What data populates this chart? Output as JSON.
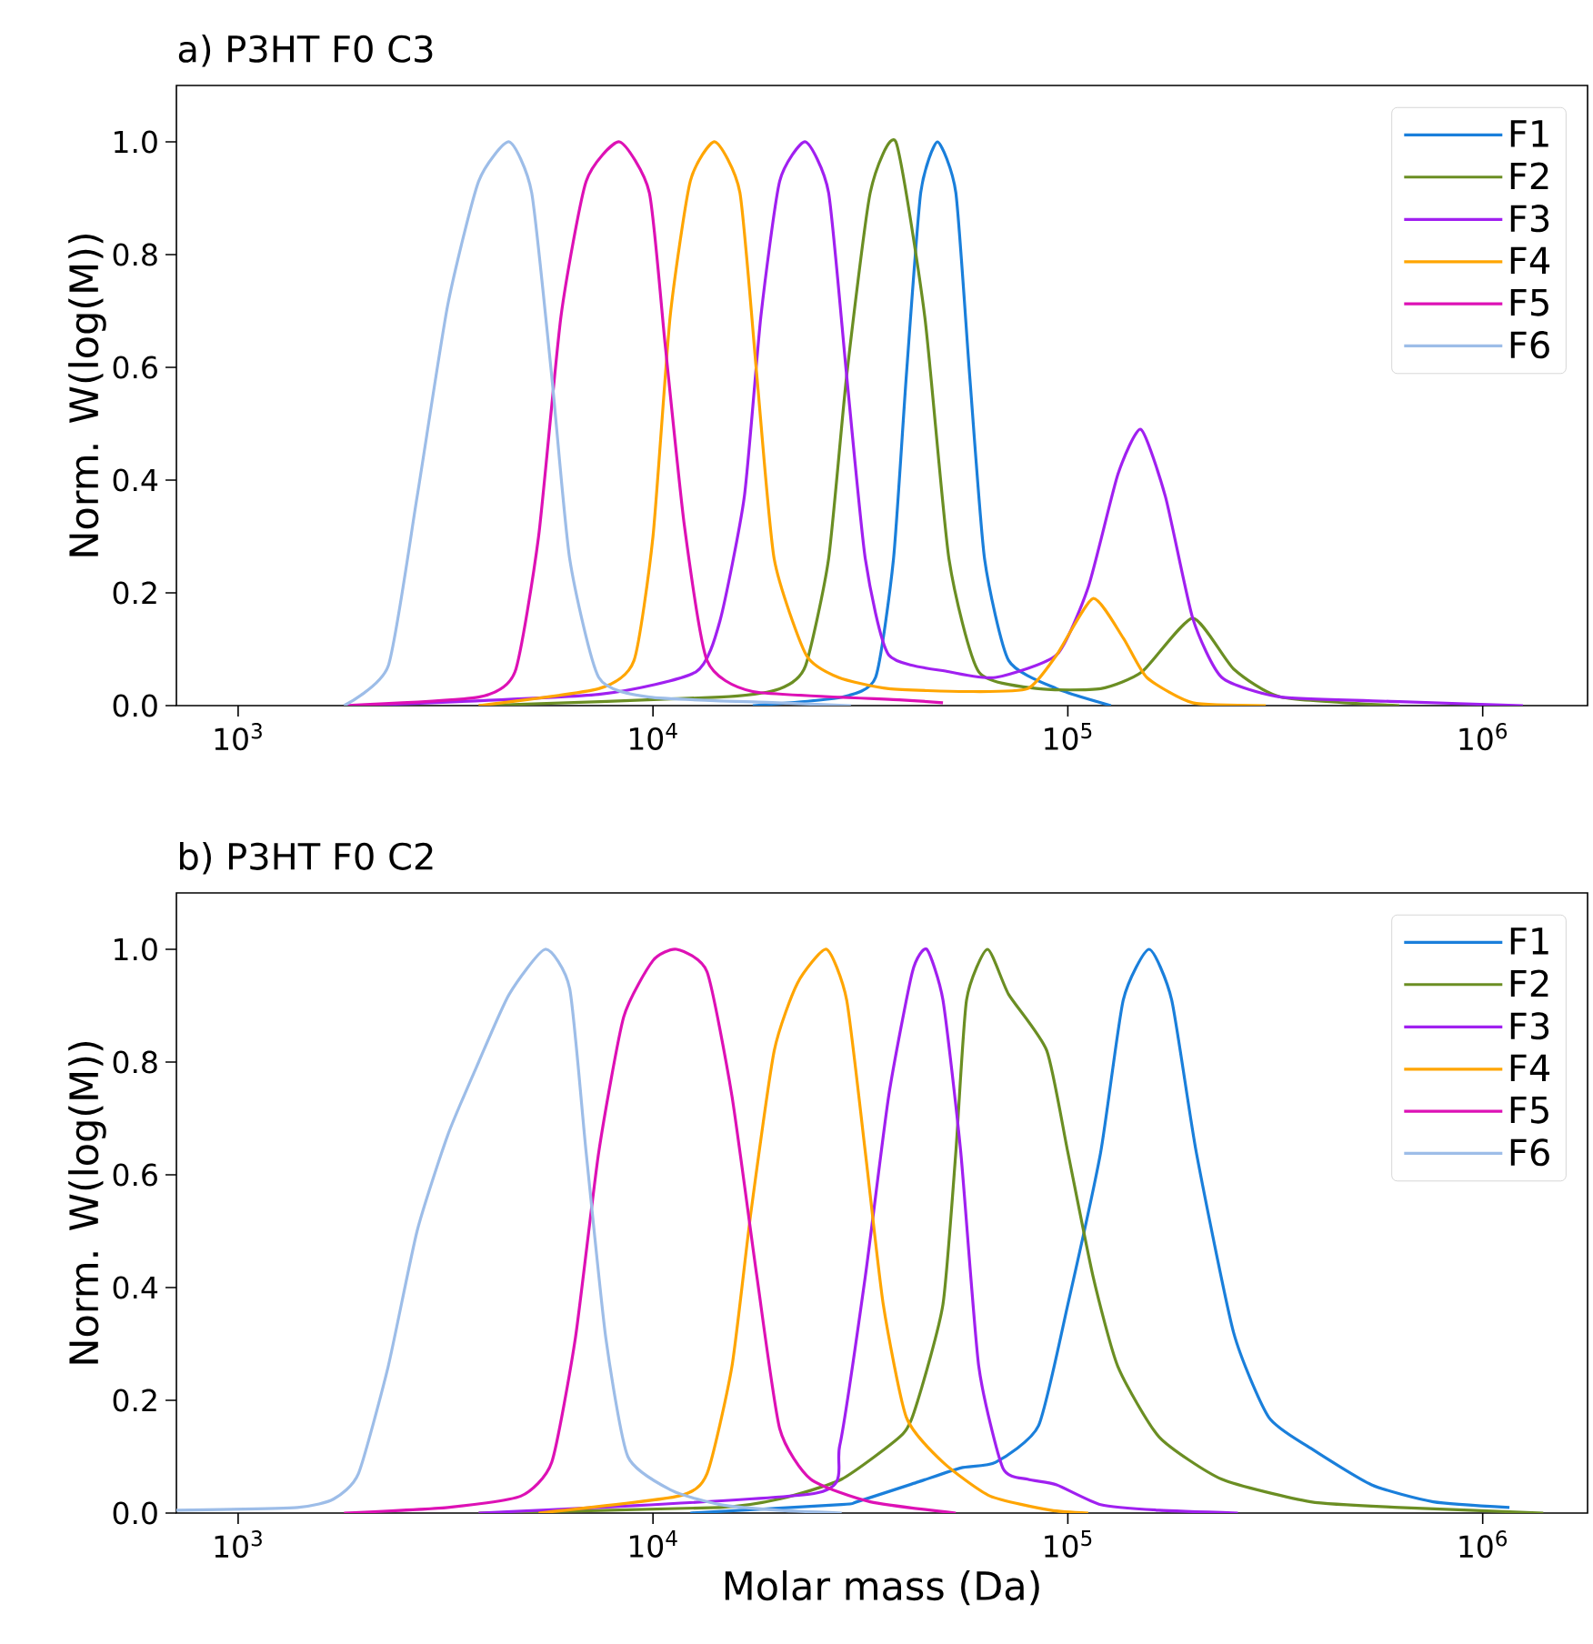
{
  "chart_data": [
    {
      "type": "line",
      "title": "a) P3HT F0 C3",
      "ylabel": "Norm. W(log(M))",
      "log": "x",
      "legend": "top right",
      "xlim": [
        710,
        1790000
      ],
      "ylim": [
        0,
        1.1
      ],
      "xticks": [
        {
          "value": 1000,
          "label": "10$^{3}$"
        },
        {
          "value": 10000,
          "label": "10$^{4}$"
        },
        {
          "value": 100000,
          "label": "10$^{5}$"
        },
        {
          "value": 1000000,
          "label": "10$^{6}$"
        }
      ],
      "yticks": [
        {
          "value": 0,
          "label": "0.0"
        },
        {
          "value": 0.2,
          "label": "0.2"
        },
        {
          "value": 0.4,
          "label": "0.4"
        },
        {
          "value": 0.6,
          "label": "0.6"
        },
        {
          "value": 0.8,
          "label": "0.8"
        },
        {
          "value": 1.0,
          "label": "1.0"
        }
      ],
      "series": [
        {
          "name": "F1",
          "color": "#1a7fdb",
          "x": [
            17400,
            28500,
            34400,
            38000,
            40800,
            44200,
            48500,
            53700,
            58000,
            63000,
            72000,
            94000,
            127000
          ],
          "values": [
            0,
            0.015,
            0.05,
            0.26,
            0.585,
            0.91,
            1.0,
            0.91,
            0.585,
            0.26,
            0.08,
            0.03,
            0
          ]
        },
        {
          "name": "F2",
          "color": "#6b8e23",
          "x": [
            3800,
            14500,
            20200,
            23300,
            26500,
            29300,
            33400,
            38500,
            45200,
            51700,
            61000,
            85000,
            120000,
            151000,
            200000,
            251000,
            327000,
            630000
          ],
          "values": [
            0,
            0.015,
            0.03,
            0.07,
            0.26,
            0.585,
            0.91,
            1.0,
            0.69,
            0.26,
            0.06,
            0.03,
            0.03,
            0.06,
            0.155,
            0.065,
            0.015,
            0
          ]
        },
        {
          "name": "F3",
          "color": "#a020f0",
          "x": [
            1950,
            7400,
            12700,
            14500,
            16600,
            18200,
            20200,
            23300,
            26500,
            29300,
            32500,
            37000,
            51700,
            67000,
            94000,
            112000,
            132000,
            150000,
            172000,
            200000,
            235000,
            327000,
            630000,
            1250000
          ],
          "values": [
            0,
            0.02,
            0.06,
            0.15,
            0.37,
            0.69,
            0.93,
            1.0,
            0.91,
            0.585,
            0.26,
            0.09,
            0.06,
            0.05,
            0.09,
            0.21,
            0.41,
            0.49,
            0.37,
            0.155,
            0.05,
            0.015,
            0.007,
            0
          ]
        },
        {
          "name": "F4",
          "color": "#ffa500",
          "x": [
            3800,
            7400,
            9000,
            10000,
            11000,
            12300,
            14100,
            16200,
            17800,
            19600,
            23400,
            28000,
            37000,
            57000,
            80000,
            94000,
            115000,
            136000,
            155000,
            200000,
            300000
          ],
          "values": [
            0,
            0.03,
            0.08,
            0.3,
            0.69,
            0.93,
            1.0,
            0.91,
            0.585,
            0.26,
            0.09,
            0.05,
            0.03,
            0.025,
            0.03,
            0.09,
            0.19,
            0.12,
            0.05,
            0.005,
            0
          ]
        },
        {
          "name": "F5",
          "color": "#dd11b5",
          "x": [
            1800,
            3800,
            4650,
            5300,
            6000,
            6900,
            8300,
            9800,
            10700,
            11900,
            13500,
            17400,
            40000,
            50000
          ],
          "values": [
            0,
            0.015,
            0.06,
            0.3,
            0.69,
            0.93,
            1.0,
            0.91,
            0.64,
            0.32,
            0.08,
            0.025,
            0.01,
            0.005
          ]
        },
        {
          "name": "F6",
          "color": "#9dbde8",
          "x": [
            1800,
            2300,
            2700,
            3200,
            3800,
            4500,
            5100,
            5700,
            6300,
            7400,
            9800,
            20000,
            30000
          ],
          "values": [
            0,
            0.07,
            0.37,
            0.71,
            0.93,
            1.0,
            0.91,
            0.585,
            0.26,
            0.05,
            0.015,
            0.005,
            0
          ]
        }
      ]
    },
    {
      "type": "line",
      "title": "b) P3HT F0 C2",
      "xlabel": "Molar mass (Da)",
      "ylabel": "Norm. W(log(M))",
      "log": "x",
      "legend": "top right",
      "xlim": [
        710,
        1790000
      ],
      "ylim": [
        0,
        1.1
      ],
      "xticks": [
        {
          "value": 1000,
          "label": "10$^{3}$"
        },
        {
          "value": 10000,
          "label": "10$^{4}$"
        },
        {
          "value": 100000,
          "label": "10$^{5}$"
        },
        {
          "value": 1000000,
          "label": "10$^{6}$"
        }
      ],
      "yticks": [
        {
          "value": 0,
          "label": "0.0"
        },
        {
          "value": 0.2,
          "label": "0.2"
        },
        {
          "value": 0.4,
          "label": "0.4"
        },
        {
          "value": 0.6,
          "label": "0.6"
        },
        {
          "value": 0.8,
          "label": "0.8"
        },
        {
          "value": 1.0,
          "label": "1.0"
        }
      ],
      "series": [
        {
          "name": "F1",
          "color": "#1a7fdb",
          "x": [
            12300,
            28500,
            31000,
            43500,
            55200,
            67000,
            85000,
            100000,
            120000,
            136000,
            157000,
            178000,
            204000,
            251000,
            305000,
            385000,
            540000,
            760000,
            1160000
          ],
          "values": [
            0,
            0.015,
            0.02,
            0.055,
            0.08,
            0.09,
            0.155,
            0.37,
            0.64,
            0.91,
            1.0,
            0.91,
            0.64,
            0.32,
            0.17,
            0.115,
            0.05,
            0.02,
            0.01
          ]
        },
        {
          "name": "F2",
          "color": "#6b8e23",
          "x": [
            3800,
            14500,
            20200,
            28500,
            40000,
            43500,
            50000,
            53700,
            57000,
            64000,
            72000,
            89000,
            100000,
            115000,
            132000,
            166000,
            235000,
            385000,
            630000,
            1400000
          ],
          "values": [
            0,
            0.01,
            0.025,
            0.06,
            0.14,
            0.2,
            0.37,
            0.64,
            0.91,
            1.0,
            0.92,
            0.82,
            0.64,
            0.42,
            0.26,
            0.135,
            0.06,
            0.02,
            0.01,
            0
          ]
        },
        {
          "name": "F3",
          "color": "#a020f0",
          "x": [
            3800,
            24600,
            28200,
            32500,
            37000,
            42200,
            45700,
            50000,
            55200,
            61000,
            69700,
            80000,
            94000,
            120000,
            166000,
            257000
          ],
          "values": [
            0,
            0.035,
            0.12,
            0.42,
            0.74,
            0.96,
            1.0,
            0.91,
            0.64,
            0.26,
            0.08,
            0.06,
            0.05,
            0.015,
            0.005,
            0
          ]
        },
        {
          "name": "F4",
          "color": "#ffa500",
          "x": [
            5300,
            11500,
            13500,
            15500,
            17200,
            19600,
            22300,
            26200,
            29300,
            32500,
            35900,
            40800,
            50000,
            65000,
            91000,
            112000
          ],
          "values": [
            0,
            0.03,
            0.07,
            0.26,
            0.53,
            0.82,
            0.94,
            1.0,
            0.91,
            0.64,
            0.37,
            0.17,
            0.09,
            0.03,
            0.005,
            0
          ]
        },
        {
          "name": "F5",
          "color": "#dd11b5",
          "x": [
            1800,
            3200,
            4800,
            5700,
            6500,
            7400,
            8500,
            10000,
            11400,
            13500,
            15500,
            17800,
            20200,
            24000,
            33400,
            53700
          ],
          "values": [
            0,
            0.01,
            0.03,
            0.09,
            0.31,
            0.64,
            0.88,
            0.98,
            1.0,
            0.96,
            0.74,
            0.42,
            0.15,
            0.06,
            0.02,
            0
          ]
        },
        {
          "name": "F6",
          "color": "#9dbde8",
          "x": [
            710,
            1390,
            1700,
            1950,
            2300,
            2700,
            3200,
            3800,
            4500,
            5500,
            6300,
            6900,
            7700,
            8700,
            11100,
            14500,
            20000,
            28500
          ],
          "values": [
            0.005,
            0.01,
            0.025,
            0.07,
            0.26,
            0.5,
            0.67,
            0.8,
            0.92,
            1.0,
            0.93,
            0.64,
            0.31,
            0.1,
            0.04,
            0.015,
            0.005,
            0
          ]
        }
      ]
    }
  ]
}
